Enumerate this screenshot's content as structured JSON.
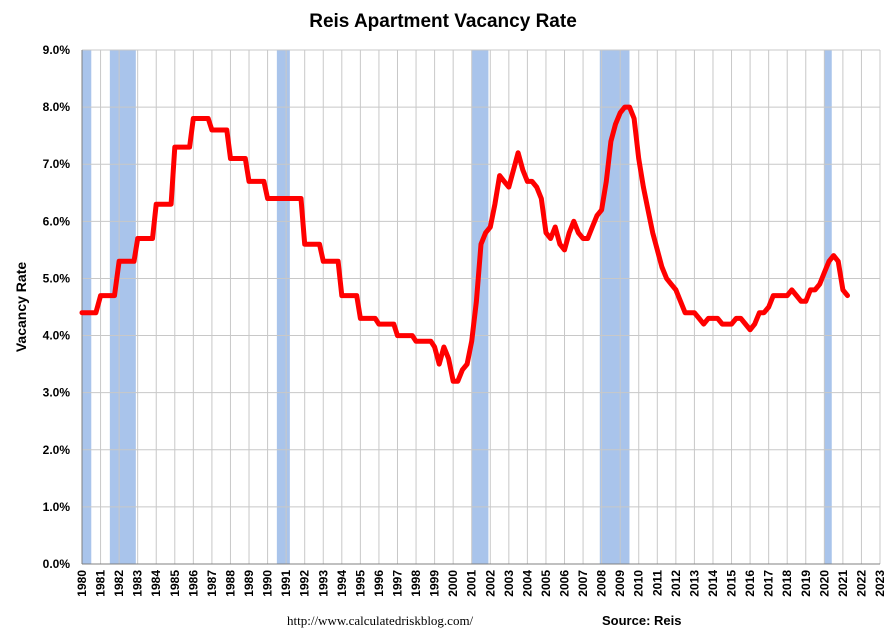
{
  "chart_data": {
    "type": "line",
    "title": "Reis Apartment Vacancy Rate",
    "ylabel": "Vacancy Rate",
    "xlabel": "",
    "ylim": [
      0,
      9
    ],
    "xlim": [
      1980,
      2023
    ],
    "grid": true,
    "legend": "none",
    "y_ticks": [
      "0.0%",
      "1.0%",
      "2.0%",
      "3.0%",
      "4.0%",
      "5.0%",
      "6.0%",
      "7.0%",
      "8.0%",
      "9.0%"
    ],
    "x_ticks": [
      "1980",
      "1981",
      "1982",
      "1983",
      "1984",
      "1985",
      "1986",
      "1987",
      "1988",
      "1989",
      "1990",
      "1991",
      "1992",
      "1993",
      "1994",
      "1995",
      "1996",
      "1997",
      "1998",
      "1999",
      "2000",
      "2001",
      "2002",
      "2003",
      "2004",
      "2005",
      "2006",
      "2007",
      "2008",
      "2009",
      "2010",
      "2011",
      "2012",
      "2013",
      "2014",
      "2015",
      "2016",
      "2017",
      "2018",
      "2019",
      "2020",
      "2021",
      "2022",
      "2023"
    ],
    "recessions": [
      [
        1980.0,
        1980.5
      ],
      [
        1981.5,
        1982.9
      ],
      [
        1990.5,
        1991.2
      ],
      [
        2001.0,
        2001.9
      ],
      [
        2007.9,
        2009.5
      ],
      [
        2020.0,
        2020.4
      ]
    ],
    "series": [
      {
        "values": [
          [
            1980.0,
            4.4
          ],
          [
            1980.5,
            4.4
          ],
          [
            1980.75,
            4.4
          ],
          [
            1981.0,
            4.7
          ],
          [
            1981.75,
            4.7
          ],
          [
            1982.0,
            5.3
          ],
          [
            1982.8,
            5.3
          ],
          [
            1983.0,
            5.7
          ],
          [
            1983.8,
            5.7
          ],
          [
            1984.0,
            6.3
          ],
          [
            1984.8,
            6.3
          ],
          [
            1985.0,
            7.3
          ],
          [
            1985.8,
            7.3
          ],
          [
            1986.0,
            7.8
          ],
          [
            1986.8,
            7.8
          ],
          [
            1987.0,
            7.6
          ],
          [
            1987.8,
            7.6
          ],
          [
            1988.0,
            7.1
          ],
          [
            1988.8,
            7.1
          ],
          [
            1989.0,
            6.7
          ],
          [
            1989.8,
            6.7
          ],
          [
            1990.0,
            6.4
          ],
          [
            1991.0,
            6.4
          ],
          [
            1991.8,
            6.4
          ],
          [
            1992.0,
            5.6
          ],
          [
            1992.8,
            5.6
          ],
          [
            1993.0,
            5.3
          ],
          [
            1993.8,
            5.3
          ],
          [
            1994.0,
            4.7
          ],
          [
            1994.8,
            4.7
          ],
          [
            1995.0,
            4.3
          ],
          [
            1995.8,
            4.3
          ],
          [
            1996.0,
            4.2
          ],
          [
            1996.8,
            4.2
          ],
          [
            1997.0,
            4.0
          ],
          [
            1997.8,
            4.0
          ],
          [
            1998.0,
            3.9
          ],
          [
            1998.8,
            3.9
          ],
          [
            1999.0,
            3.8
          ],
          [
            1999.25,
            3.5
          ],
          [
            1999.5,
            3.8
          ],
          [
            1999.75,
            3.6
          ],
          [
            2000.0,
            3.2
          ],
          [
            2000.25,
            3.2
          ],
          [
            2000.5,
            3.4
          ],
          [
            2000.75,
            3.5
          ],
          [
            2001.0,
            3.9
          ],
          [
            2001.25,
            4.6
          ],
          [
            2001.5,
            5.6
          ],
          [
            2001.75,
            5.8
          ],
          [
            2002.0,
            5.9
          ],
          [
            2002.25,
            6.3
          ],
          [
            2002.5,
            6.8
          ],
          [
            2002.75,
            6.7
          ],
          [
            2003.0,
            6.6
          ],
          [
            2003.25,
            6.9
          ],
          [
            2003.5,
            7.2
          ],
          [
            2003.75,
            6.9
          ],
          [
            2004.0,
            6.7
          ],
          [
            2004.25,
            6.7
          ],
          [
            2004.5,
            6.6
          ],
          [
            2004.75,
            6.4
          ],
          [
            2005.0,
            5.8
          ],
          [
            2005.25,
            5.7
          ],
          [
            2005.5,
            5.9
          ],
          [
            2005.75,
            5.6
          ],
          [
            2006.0,
            5.5
          ],
          [
            2006.25,
            5.8
          ],
          [
            2006.5,
            6.0
          ],
          [
            2006.75,
            5.8
          ],
          [
            2007.0,
            5.7
          ],
          [
            2007.25,
            5.7
          ],
          [
            2007.5,
            5.9
          ],
          [
            2007.75,
            6.1
          ],
          [
            2008.0,
            6.2
          ],
          [
            2008.25,
            6.7
          ],
          [
            2008.5,
            7.4
          ],
          [
            2008.75,
            7.7
          ],
          [
            2009.0,
            7.9
          ],
          [
            2009.25,
            8.0
          ],
          [
            2009.5,
            8.0
          ],
          [
            2009.75,
            7.8
          ],
          [
            2010.0,
            7.1
          ],
          [
            2010.25,
            6.6
          ],
          [
            2010.5,
            6.2
          ],
          [
            2010.75,
            5.8
          ],
          [
            2011.0,
            5.5
          ],
          [
            2011.25,
            5.2
          ],
          [
            2011.5,
            5.0
          ],
          [
            2011.75,
            4.9
          ],
          [
            2012.0,
            4.8
          ],
          [
            2012.25,
            4.6
          ],
          [
            2012.5,
            4.4
          ],
          [
            2012.75,
            4.4
          ],
          [
            2013.0,
            4.4
          ],
          [
            2013.25,
            4.3
          ],
          [
            2013.5,
            4.2
          ],
          [
            2013.75,
            4.3
          ],
          [
            2014.0,
            4.3
          ],
          [
            2014.25,
            4.3
          ],
          [
            2014.5,
            4.2
          ],
          [
            2014.75,
            4.2
          ],
          [
            2015.0,
            4.2
          ],
          [
            2015.25,
            4.3
          ],
          [
            2015.5,
            4.3
          ],
          [
            2015.75,
            4.2
          ],
          [
            2016.0,
            4.1
          ],
          [
            2016.25,
            4.2
          ],
          [
            2016.5,
            4.4
          ],
          [
            2016.75,
            4.4
          ],
          [
            2017.0,
            4.5
          ],
          [
            2017.25,
            4.7
          ],
          [
            2017.5,
            4.7
          ],
          [
            2017.75,
            4.7
          ],
          [
            2018.0,
            4.7
          ],
          [
            2018.25,
            4.8
          ],
          [
            2018.5,
            4.7
          ],
          [
            2018.75,
            4.6
          ],
          [
            2019.0,
            4.6
          ],
          [
            2019.25,
            4.8
          ],
          [
            2019.5,
            4.8
          ],
          [
            2019.75,
            4.9
          ],
          [
            2020.0,
            5.1
          ],
          [
            2020.25,
            5.3
          ],
          [
            2020.5,
            5.4
          ],
          [
            2020.75,
            5.3
          ],
          [
            2021.0,
            4.8
          ],
          [
            2021.25,
            4.7
          ]
        ]
      }
    ]
  },
  "footer": {
    "url": "http://www.calculatedriskblog.com/",
    "source": "Source: Reis"
  },
  "colors": {
    "line": "#ff0000",
    "recession": "#a9c4eb",
    "grid": "#c8c8c8",
    "axis": "#808080"
  }
}
